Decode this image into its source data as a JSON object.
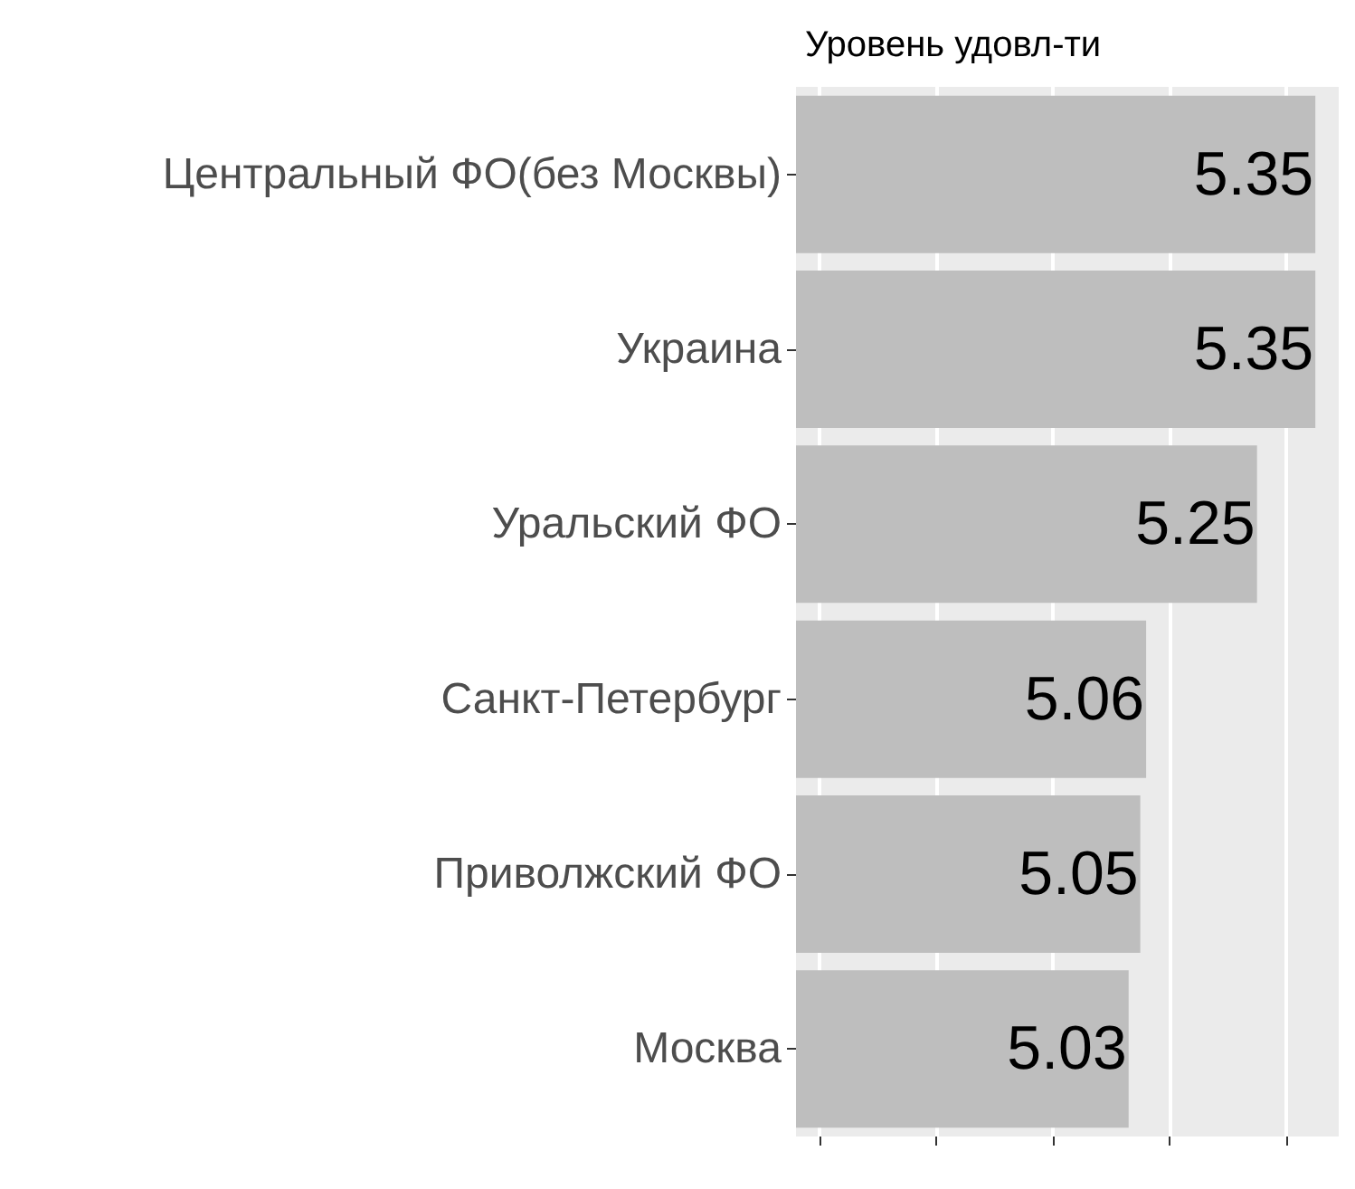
{
  "chart_data": {
    "type": "bar",
    "orientation": "horizontal",
    "title": "Уровень удовл-ти",
    "categories": [
      "Центральный ФО(без Москвы)",
      "Украина",
      "Уральский ФО",
      "Санкт-Петербург",
      "Приволжский ФО",
      "Москва"
    ],
    "values": [
      5.35,
      5.35,
      5.25,
      5.06,
      5.05,
      5.03
    ],
    "color": "#bebebe",
    "xlim": [
      4.46,
      5.39
    ],
    "xticks": [
      {
        "value": 4.5,
        "label": null
      },
      {
        "value": 4.7,
        "label": null
      },
      {
        "value": 4.9,
        "label": null
      },
      {
        "value": 5.1,
        "label": null
      },
      {
        "value": 5.3,
        "label": null
      }
    ],
    "tick_labels": "y",
    "grid": "x",
    "data_labels": true
  }
}
